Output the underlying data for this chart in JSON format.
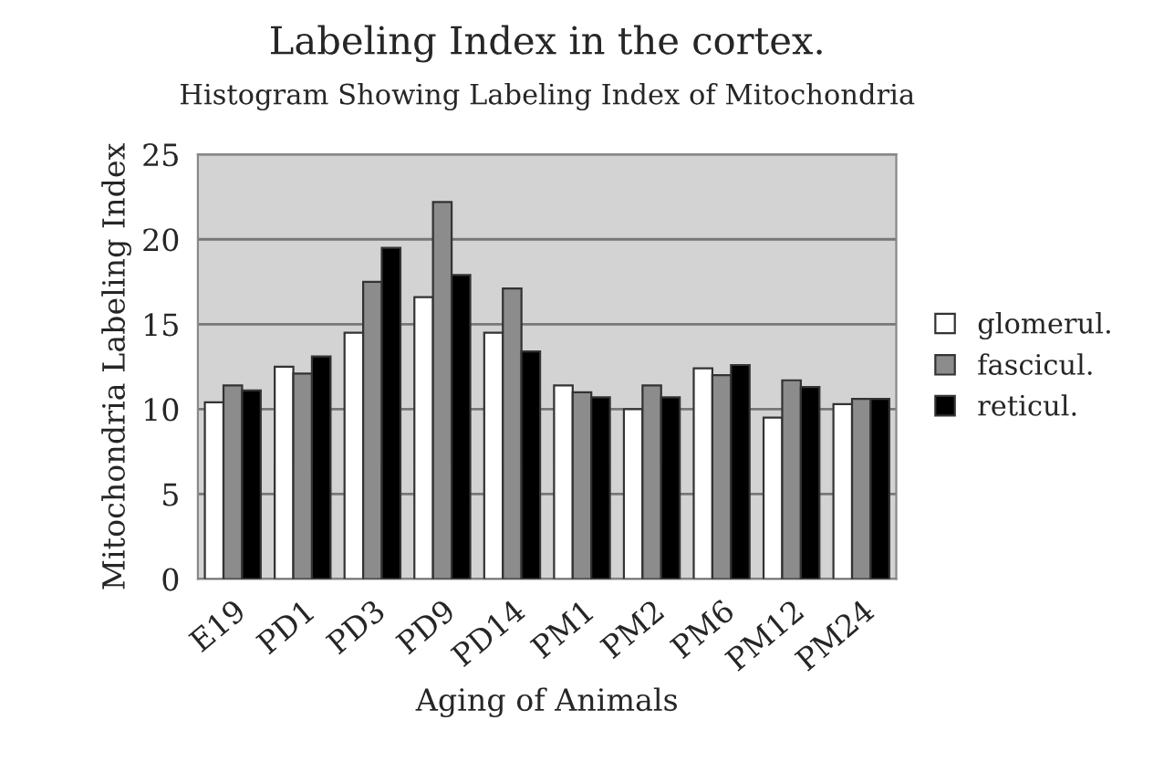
{
  "chart_data": {
    "type": "bar",
    "title": "Labeling Index in the cortex.",
    "subtitle": "Histogram Showing Labeling Index of Mitochondria",
    "xlabel": "Aging of Animals",
    "ylabel": "Mitochondria Labeling Index",
    "categories": [
      "E19",
      "PD1",
      "PD3",
      "PD9",
      "PD14",
      "PM1",
      "PM2",
      "PM6",
      "PM12",
      "PM24"
    ],
    "series": [
      {
        "name": "glomerul.",
        "color": "#ffffff",
        "values": [
          10.4,
          12.5,
          14.5,
          16.6,
          14.5,
          11.4,
          10.0,
          12.4,
          9.5,
          10.3
        ]
      },
      {
        "name": "fascicul.",
        "color": "#8c8c8c",
        "values": [
          11.4,
          12.1,
          17.5,
          22.2,
          17.1,
          11.0,
          11.4,
          12.0,
          11.7,
          10.6
        ]
      },
      {
        "name": "reticul.",
        "color": "#000000",
        "values": [
          11.1,
          13.1,
          19.5,
          17.9,
          13.4,
          10.7,
          10.7,
          12.6,
          11.3,
          10.6
        ]
      }
    ],
    "ylim": [
      0,
      25
    ],
    "yticks": [
      0,
      5,
      10,
      15,
      20,
      25
    ],
    "grid": "y",
    "legend": "right"
  }
}
